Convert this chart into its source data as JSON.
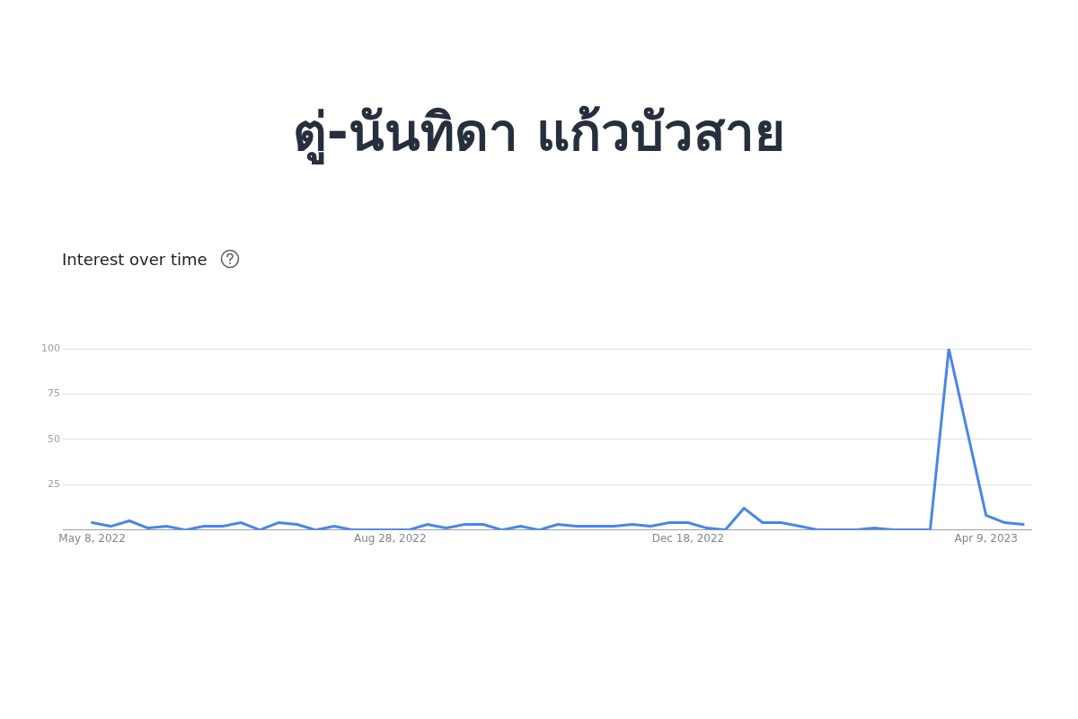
{
  "chart_data": {
    "type": "line",
    "title": "ตู่-นันทิดา แก้วบัวสาย",
    "subtitle": "Interest over time",
    "x": [
      "2022-05-08",
      "2022-05-15",
      "2022-05-22",
      "2022-05-29",
      "2022-06-05",
      "2022-06-12",
      "2022-06-19",
      "2022-06-26",
      "2022-07-03",
      "2022-07-10",
      "2022-07-17",
      "2022-07-24",
      "2022-07-31",
      "2022-08-07",
      "2022-08-14",
      "2022-08-21",
      "2022-08-28",
      "2022-09-04",
      "2022-09-11",
      "2022-09-18",
      "2022-09-25",
      "2022-10-02",
      "2022-10-09",
      "2022-10-16",
      "2022-10-23",
      "2022-10-30",
      "2022-11-06",
      "2022-11-13",
      "2022-11-20",
      "2022-11-27",
      "2022-12-04",
      "2022-12-11",
      "2022-12-18",
      "2022-12-25",
      "2023-01-01",
      "2023-01-08",
      "2023-01-15",
      "2023-01-22",
      "2023-01-29",
      "2023-02-05",
      "2023-02-12",
      "2023-02-19",
      "2023-02-26",
      "2023-03-05",
      "2023-03-12",
      "2023-03-19",
      "2023-03-26",
      "2023-04-02",
      "2023-04-09",
      "2023-04-16",
      "2023-04-23"
    ],
    "series": [
      {
        "color": "#4a86e8",
        "values": [
          4,
          2,
          5,
          1,
          2,
          0,
          2,
          2,
          4,
          0,
          4,
          3,
          0,
          2,
          0,
          0,
          0,
          0,
          3,
          1,
          3,
          3,
          0,
          2,
          0,
          3,
          2,
          2,
          2,
          3,
          2,
          4,
          4,
          1,
          0,
          12,
          4,
          4,
          2,
          0,
          0,
          0,
          1,
          0,
          0,
          0,
          100,
          54,
          8,
          4,
          3
        ]
      }
    ],
    "xlim": [
      "2022-04-27",
      "2023-04-26"
    ],
    "xticks": [
      {
        "value": "2022-05-08",
        "label": "May 8, 2022"
      },
      {
        "value": "2022-08-28",
        "label": "Aug 28, 2022"
      },
      {
        "value": "2022-12-18",
        "label": "Dec 18, 2022"
      },
      {
        "value": "2023-04-09",
        "label": "Apr 9, 2023"
      }
    ],
    "ylim": [
      0,
      100
    ],
    "yticks": [
      25,
      50,
      75,
      100
    ],
    "grid": "y",
    "legend": false,
    "marker": "none",
    "line_style": "solid"
  }
}
